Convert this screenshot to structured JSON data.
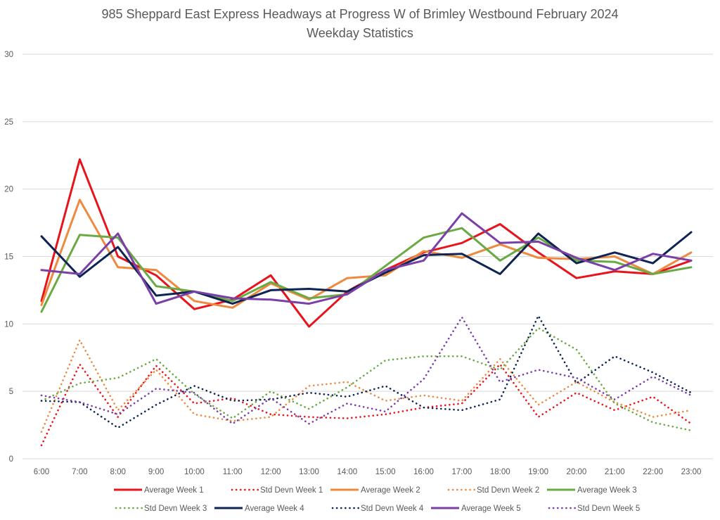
{
  "chart_data": {
    "type": "line",
    "title": "985 Sheppard East Express Headways at Progress W of Brimley Westbound February 2024",
    "subtitle": "Weekday Statistics",
    "xlabel": "",
    "ylabel": "",
    "ylim": [
      0,
      30
    ],
    "yticks": [
      "0",
      "5",
      "10",
      "15",
      "20",
      "25",
      "30"
    ],
    "ytick_values": [
      0,
      5,
      10,
      15,
      20,
      25,
      30
    ],
    "grid": true,
    "legend_position": "bottom",
    "categories": [
      "6:00",
      "7:00",
      "8:00",
      "9:00",
      "10:00",
      "11:00",
      "12:00",
      "13:00",
      "14:00",
      "15:00",
      "16:00",
      "17:00",
      "18:00",
      "19:00",
      "20:00",
      "21:00",
      "22:00",
      "23:00"
    ],
    "series": [
      {
        "name": "Average Week 1",
        "color": "#e8141b",
        "style": "solid",
        "values": [
          11.7,
          22.2,
          15.0,
          13.6,
          11.1,
          11.8,
          13.6,
          9.8,
          12.4,
          14.0,
          15.3,
          16.0,
          17.4,
          15.3,
          13.4,
          13.9,
          13.7,
          14.7
        ]
      },
      {
        "name": "Std Devn Week 1",
        "color": "#e8141b",
        "style": "dotted",
        "values": [
          1.0,
          7.0,
          3.1,
          6.9,
          4.1,
          4.5,
          3.3,
          3.1,
          3.0,
          3.3,
          3.8,
          4.1,
          7.0,
          3.1,
          4.9,
          3.6,
          4.6,
          2.6
        ]
      },
      {
        "name": "Average Week 2",
        "color": "#ed8a3f",
        "style": "solid",
        "values": [
          11.4,
          19.2,
          14.2,
          14.0,
          11.7,
          11.2,
          13.0,
          11.8,
          13.4,
          13.6,
          15.4,
          14.9,
          15.9,
          14.9,
          14.8,
          15.0,
          13.7,
          15.3
        ]
      },
      {
        "name": "Std Devn Week 2",
        "color": "#ed8a3f",
        "style": "dotted",
        "values": [
          2.0,
          8.8,
          3.6,
          6.6,
          3.3,
          2.8,
          3.1,
          5.4,
          5.7,
          4.3,
          4.7,
          4.3,
          7.4,
          4.0,
          5.7,
          4.2,
          3.1,
          3.6
        ]
      },
      {
        "name": "Average Week 3",
        "color": "#6aaa45",
        "style": "solid",
        "values": [
          10.9,
          16.6,
          16.4,
          12.8,
          12.4,
          11.7,
          13.1,
          11.9,
          12.2,
          14.3,
          16.4,
          17.1,
          14.7,
          16.4,
          14.7,
          14.6,
          13.7,
          14.2
        ]
      },
      {
        "name": "Std Devn Week 3",
        "color": "#6aaa45",
        "style": "dotted",
        "values": [
          4.3,
          5.6,
          6.0,
          7.4,
          4.8,
          3.0,
          5.0,
          3.7,
          5.3,
          7.3,
          7.6,
          7.6,
          6.6,
          9.7,
          8.1,
          4.1,
          2.7,
          2.1
        ]
      },
      {
        "name": "Average Week 4",
        "color": "#0d2454",
        "style": "solid",
        "values": [
          16.5,
          13.5,
          15.7,
          12.1,
          12.4,
          11.5,
          12.5,
          12.6,
          12.4,
          13.8,
          15.1,
          15.2,
          13.7,
          16.7,
          14.5,
          15.3,
          14.5,
          16.8
        ]
      },
      {
        "name": "Std Devn Week 4",
        "color": "#0d2454",
        "style": "dotted",
        "values": [
          4.3,
          4.2,
          2.3,
          4.0,
          5.4,
          4.3,
          4.4,
          4.9,
          4.6,
          5.4,
          3.8,
          3.6,
          4.4,
          10.6,
          5.6,
          7.6,
          6.4,
          4.9
        ]
      },
      {
        "name": "Average Week 5",
        "color": "#7b3fa8",
        "style": "solid",
        "values": [
          14.0,
          13.7,
          16.7,
          11.5,
          12.4,
          11.9,
          11.8,
          11.5,
          12.2,
          14.0,
          14.7,
          18.2,
          16.0,
          16.1,
          14.9,
          14.0,
          15.2,
          14.7
        ]
      },
      {
        "name": "Std Devn Week 5",
        "color": "#7b3fa8",
        "style": "dotted",
        "values": [
          4.7,
          4.2,
          3.3,
          5.2,
          4.9,
          2.6,
          4.5,
          2.6,
          4.1,
          3.5,
          5.9,
          10.5,
          5.7,
          6.6,
          6.0,
          4.4,
          6.1,
          4.7
        ]
      }
    ]
  }
}
